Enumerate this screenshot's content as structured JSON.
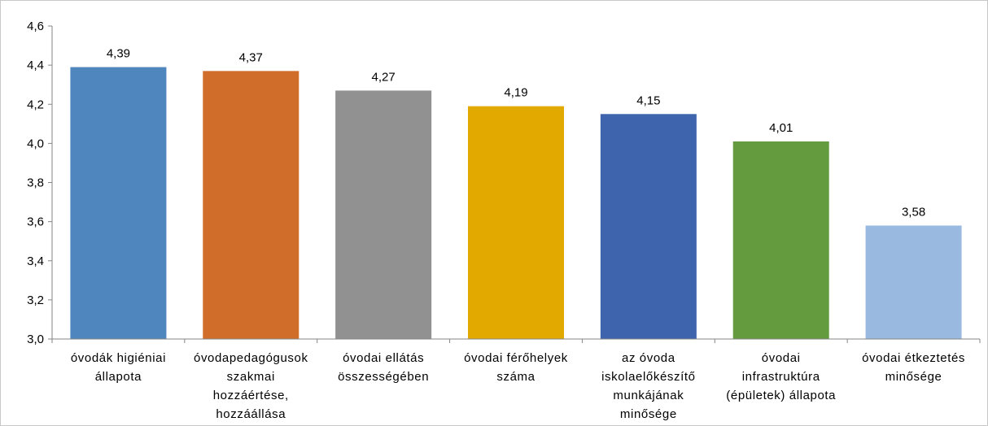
{
  "chart_data": {
    "type": "bar",
    "categories": [
      [
        "óvodák higiéniai",
        "állapota"
      ],
      [
        "óvodapedagógusok",
        "szakmai",
        "hozzáértése,",
        "hozzáállása"
      ],
      [
        "óvodai ellátás",
        "összességében"
      ],
      [
        "óvodai férőhelyek",
        "száma"
      ],
      [
        "az óvoda",
        "iskolaelőkészítő",
        "munkájának",
        "minősége"
      ],
      [
        "óvodai",
        "infrastruktúra",
        "(épületek) állapota"
      ],
      [
        "óvodai étkeztetés",
        "minősége"
      ]
    ],
    "values": [
      4.39,
      4.37,
      4.27,
      4.19,
      4.15,
      4.01,
      3.58
    ],
    "value_labels": [
      "4,39",
      "4,37",
      "4,27",
      "4,19",
      "4,15",
      "4,01",
      "3,58"
    ],
    "colors": [
      "#4f86bd",
      "#d06d2b",
      "#919191",
      "#e2a900",
      "#3d64ad",
      "#659b3f",
      "#9ab9e0"
    ],
    "ylim": [
      3.0,
      4.6
    ],
    "yticks": [
      3.0,
      3.2,
      3.4,
      3.6,
      3.8,
      4.0,
      4.2,
      4.4,
      4.6
    ],
    "ytick_labels": [
      "3,0",
      "3,2",
      "3,4",
      "3,6",
      "3,8",
      "4,0",
      "4,2",
      "4,4",
      "4,6"
    ],
    "grid": false,
    "legend": "none",
    "title": "",
    "xlabel": "",
    "ylabel": ""
  }
}
